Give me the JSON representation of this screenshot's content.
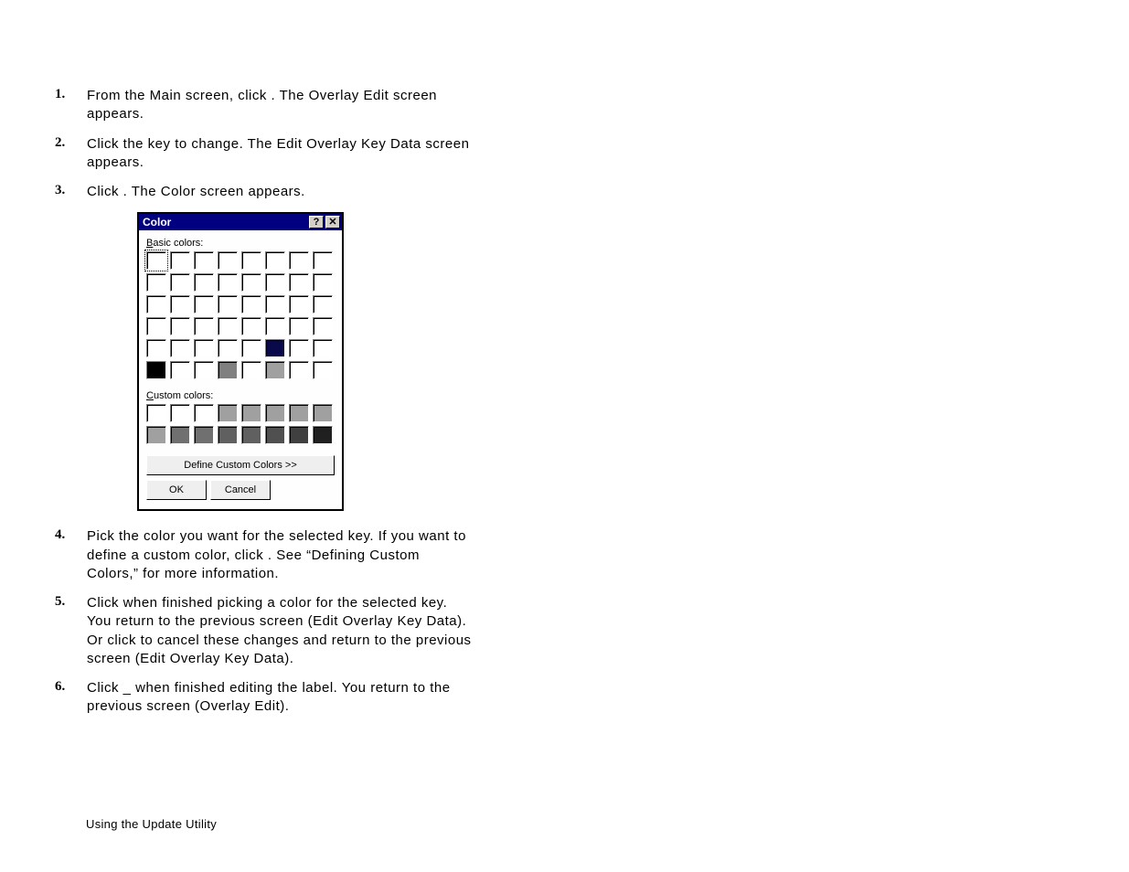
{
  "steps": [
    {
      "num": "1.",
      "text": "From the Main screen, click                       .  The Overlay Edit screen appears."
    },
    {
      "num": "2.",
      "text": "Click the key to change.  The Edit Overlay Key Data screen appears."
    },
    {
      "num": "3.",
      "text": "Click                         .  The Color screen appears."
    },
    {
      "num": "4.",
      "text": "Pick the color you want for the selected key.  If you want to define a custom color, click                                 .  See “Defining Custom Colors,” for more information."
    },
    {
      "num": "5.",
      "text": "Click       when finished picking a color for the selected key.  You return to the previous screen (Edit Overlay Key Data).  Or click             to cancel these changes and return to the previous screen (Edit Overlay Key Data)."
    },
    {
      "num": "6.",
      "text": "Click _       when finished editing the label.  You return to the previous screen (Overlay Edit)."
    }
  ],
  "dialog": {
    "title": "Color",
    "help_symbol": "?",
    "close_symbol": "✕",
    "basic_label_prefix": "B",
    "basic_label_rest": "asic colors:",
    "custom_label_prefix": "C",
    "custom_label_rest": "ustom colors:",
    "define_label_prefix": "D",
    "define_label_rest": "efine Custom Colors >>",
    "ok_label": "OK",
    "cancel_label": "Cancel",
    "basic_colors": [
      "#ffffff",
      "#ffffff",
      "#ffffff",
      "#ffffff",
      "#ffffff",
      "#ffffff",
      "#ffffff",
      "#ffffff",
      "#ffffff",
      "#ffffff",
      "#ffffff",
      "#ffffff",
      "#ffffff",
      "#ffffff",
      "#ffffff",
      "#ffffff",
      "#ffffff",
      "#ffffff",
      "#ffffff",
      "#ffffff",
      "#ffffff",
      "#ffffff",
      "#ffffff",
      "#ffffff",
      "#ffffff",
      "#ffffff",
      "#ffffff",
      "#ffffff",
      "#ffffff",
      "#ffffff",
      "#ffffff",
      "#ffffff",
      "#ffffff",
      "#ffffff",
      "#ffffff",
      "#ffffff",
      "#ffffff",
      "#0a0a4a",
      "#ffffff",
      "#ffffff",
      "#000000",
      "#ffffff",
      "#ffffff",
      "#808080",
      "#ffffff",
      "#a0a0a0",
      "#ffffff",
      "#ffffff"
    ],
    "basic_selected_index": 0,
    "custom_colors": [
      "#ffffff",
      "#ffffff",
      "#ffffff",
      "#a0a0a0",
      "#a0a0a0",
      "#a0a0a0",
      "#a0a0a0",
      "#a0a0a0",
      "#a0a0a0",
      "#707070",
      "#707070",
      "#606060",
      "#606060",
      "#505050",
      "#404040",
      "#202020"
    ]
  },
  "footer": "Using the Update Utility"
}
